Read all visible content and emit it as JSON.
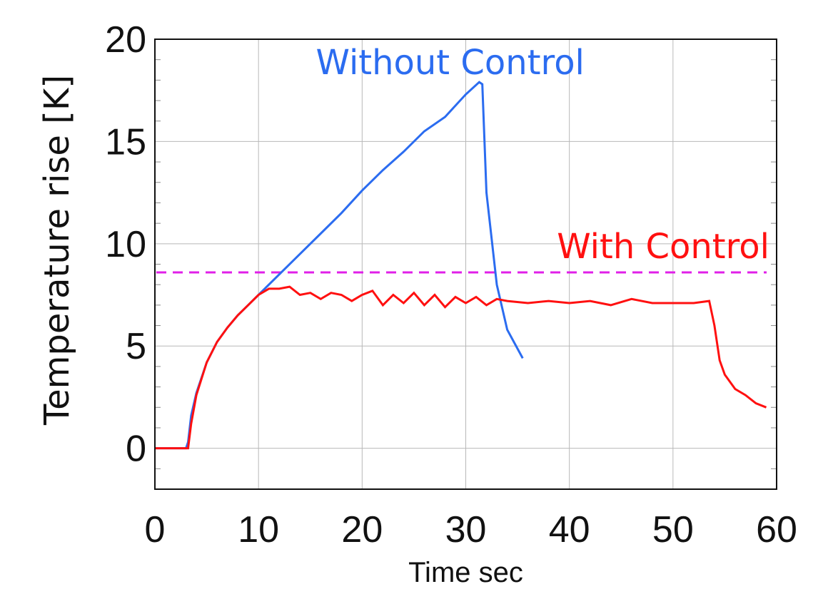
{
  "chart_data": {
    "type": "line",
    "title": "",
    "xlabel": "Time sec",
    "ylabel": "Temperature rise [K]",
    "xlim": [
      0,
      60
    ],
    "ylim": [
      -2,
      20
    ],
    "x_ticks": [
      0,
      10,
      20,
      30,
      40,
      50,
      60
    ],
    "y_ticks": [
      0,
      5,
      10,
      15,
      20
    ],
    "grid": true,
    "colors": {
      "without_control": "#2b6cf0",
      "with_control": "#ff1010",
      "limit_line": "#e020e8",
      "axes": "#111111",
      "grid": "#b8b8b8"
    },
    "annotations": [
      {
        "text": "Without Control",
        "color": "#2b6cf0"
      },
      {
        "text": "With Control",
        "color": "#ff1010"
      }
    ],
    "limit_line": {
      "y": 8.6,
      "style": "dashed"
    },
    "series": [
      {
        "key": "without_control",
        "x": [
          0,
          3.0,
          3.2,
          3.5,
          4,
          5,
          6,
          7,
          8,
          9,
          10,
          12,
          14,
          16,
          18,
          20,
          22,
          24,
          26,
          28,
          30,
          31.3,
          31.6,
          32,
          33,
          34,
          35.5
        ],
        "y": [
          0,
          0,
          0.3,
          1.6,
          2.7,
          4.2,
          5.2,
          5.9,
          6.5,
          7.0,
          7.5,
          8.5,
          9.5,
          10.5,
          11.5,
          12.6,
          13.6,
          14.5,
          15.5,
          16.2,
          17.3,
          17.9,
          17.8,
          12.5,
          8.0,
          5.8,
          4.4
        ]
      },
      {
        "key": "with_control",
        "x": [
          0,
          3.2,
          3.5,
          4,
          5,
          6,
          7,
          8,
          9,
          10,
          11,
          12,
          13,
          14,
          15,
          16,
          17,
          18,
          19,
          20,
          21,
          22,
          23,
          24,
          25,
          26,
          27,
          28,
          29,
          30,
          31,
          32,
          33,
          34,
          36,
          38,
          40,
          42,
          44,
          46,
          48,
          50,
          52,
          53.5,
          54,
          54.5,
          55,
          56,
          57,
          58,
          59
        ],
        "y": [
          0,
          0,
          1.2,
          2.6,
          4.2,
          5.2,
          5.9,
          6.5,
          7.0,
          7.5,
          7.8,
          7.8,
          7.9,
          7.5,
          7.6,
          7.3,
          7.6,
          7.5,
          7.2,
          7.5,
          7.7,
          7.0,
          7.5,
          7.1,
          7.6,
          7.0,
          7.5,
          6.9,
          7.4,
          7.1,
          7.4,
          7.0,
          7.3,
          7.2,
          7.1,
          7.2,
          7.1,
          7.2,
          7.0,
          7.3,
          7.1,
          7.1,
          7.1,
          7.2,
          6.0,
          4.3,
          3.6,
          2.9,
          2.6,
          2.2,
          2.0
        ]
      }
    ]
  }
}
